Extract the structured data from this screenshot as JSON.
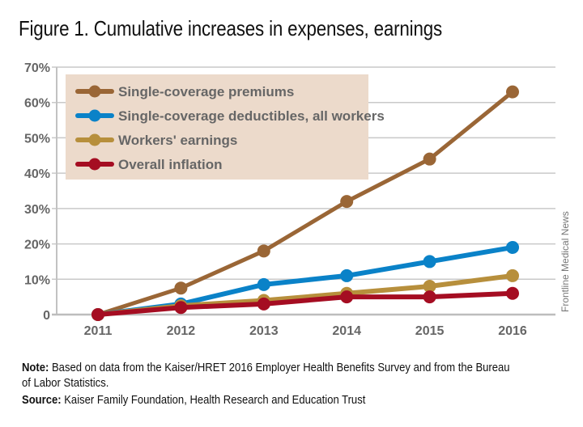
{
  "title": "Figure 1. Cumulative increases in expenses, earnings",
  "credit": "Frontline Medical News",
  "note": {
    "label": "Note:",
    "text": " Based on data from the Kaiser/HRET 2016 Employer Health Benefits Survey and from the Bureau of Labor Statistics."
  },
  "source": {
    "label": "Source:",
    "text": " Kaiser Family Foundation, Health Research and Education Trust"
  },
  "chart_data": {
    "type": "line",
    "title": "Figure 1. Cumulative increases in expenses, earnings",
    "xlabel": "",
    "ylabel": "",
    "x": [
      "2011",
      "2012",
      "2013",
      "2014",
      "2015",
      "2016"
    ],
    "ylim": [
      0,
      70
    ],
    "yticks": [
      0,
      10,
      20,
      30,
      40,
      50,
      60,
      70
    ],
    "ytick_labels": [
      "0",
      "10%",
      "20%",
      "30%",
      "40%",
      "50%",
      "60%",
      "70%"
    ],
    "grid": true,
    "legend_position": "top-left",
    "legend_background": "#ecdacb",
    "series": [
      {
        "name": "Single-coverage premiums",
        "color": "#9a6636",
        "values": [
          0,
          7.5,
          18,
          32,
          44,
          63
        ]
      },
      {
        "name": "Single-coverage deductibles, all workers",
        "color": "#0a82c8",
        "values": [
          0,
          3,
          8.5,
          11,
          15,
          19
        ]
      },
      {
        "name": "Workers' earnings",
        "color": "#b78f3c",
        "values": [
          0,
          2.5,
          4,
          6,
          8,
          11
        ]
      },
      {
        "name": "Overall inflation",
        "color": "#a50d22",
        "values": [
          0,
          2,
          3,
          5,
          5,
          6
        ]
      }
    ]
  }
}
